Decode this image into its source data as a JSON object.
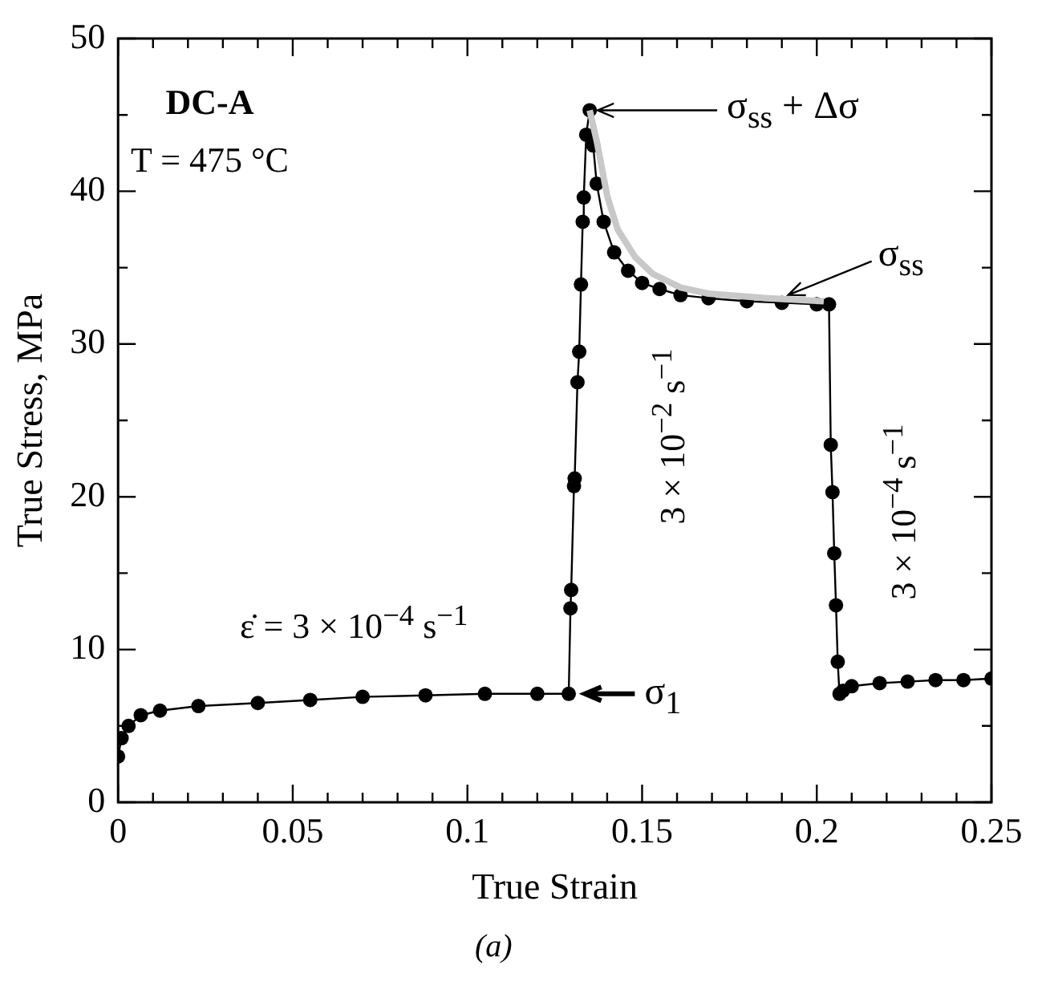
{
  "chart_data": {
    "type": "scatter",
    "xlabel": "True Strain",
    "ylabel": "True Stress, MPa",
    "xlim": [
      0,
      0.25
    ],
    "ylim": [
      0,
      50
    ],
    "xticks": [
      0,
      {
        "value": 0.01,
        "label": null
      },
      {
        "value": 0.02,
        "label": null
      },
      {
        "value": 0.03,
        "label": null
      },
      {
        "value": 0.04,
        "label": null
      },
      0.05,
      {
        "value": 0.06,
        "label": null
      },
      {
        "value": 0.07,
        "label": null
      },
      {
        "value": 0.08,
        "label": null
      },
      {
        "value": 0.09,
        "label": null
      },
      0.1,
      {
        "value": 0.11,
        "label": null
      },
      {
        "value": 0.12,
        "label": null
      },
      {
        "value": 0.13,
        "label": null
      },
      {
        "value": 0.14,
        "label": null
      },
      0.15,
      {
        "value": 0.16,
        "label": null
      },
      {
        "value": 0.17,
        "label": null
      },
      {
        "value": 0.18,
        "label": null
      },
      {
        "value": 0.19,
        "label": null
      },
      0.2,
      {
        "value": 0.21,
        "label": null
      },
      {
        "value": 0.22,
        "label": null
      },
      {
        "value": 0.23,
        "label": null
      },
      {
        "value": 0.24,
        "label": null
      },
      0.25
    ],
    "yticks": [
      0,
      {
        "value": 5,
        "label": null
      },
      10,
      {
        "value": 15,
        "label": null
      },
      20,
      {
        "value": 25,
        "label": null
      },
      30,
      {
        "value": 35,
        "label": null
      },
      40,
      {
        "value": 45,
        "label": null
      },
      50
    ],
    "grid": false,
    "legend": false,
    "series": [
      {
        "type": "line",
        "marker": "circle",
        "color": "#000000",
        "x": [
          0,
          0.001,
          0.003,
          0.0065,
          0.012,
          0.023,
          0.04,
          0.055,
          0.07,
          0.088,
          0.105,
          0.12,
          0.129,
          0.1295,
          0.1297,
          0.1305,
          0.1307,
          0.1315,
          0.132,
          0.1325,
          0.133,
          0.1333,
          0.134,
          0.135,
          0.136,
          0.137,
          0.139,
          0.142,
          0.146,
          0.15,
          0.155,
          0.161,
          0.169,
          0.18,
          0.19,
          0.2,
          0.2035,
          0.204,
          0.2045,
          0.205,
          0.2055,
          0.206,
          0.2065,
          0.2075,
          0.21,
          0.218,
          0.226,
          0.234,
          0.242,
          0.25
        ],
        "values": [
          3.0,
          4.2,
          5.0,
          5.7,
          6.0,
          6.3,
          6.5,
          6.7,
          6.9,
          7.0,
          7.1,
          7.1,
          7.1,
          12.7,
          13.9,
          20.7,
          21.2,
          27.5,
          29.5,
          33.9,
          38.0,
          39.6,
          43.7,
          45.3,
          43.0,
          40.5,
          38.0,
          36.0,
          34.8,
          34.0,
          33.6,
          33.2,
          33.0,
          32.8,
          32.7,
          32.6,
          32.6,
          23.4,
          20.3,
          16.3,
          12.9,
          9.2,
          7.1,
          7.3,
          7.6,
          7.8,
          7.9,
          8.0,
          8.0,
          8.1
        ]
      },
      {
        "type": "line",
        "marker": "none",
        "color": "#c8c8c8",
        "x": [
          0.135,
          0.137,
          0.14,
          0.143,
          0.148,
          0.153,
          0.161,
          0.169,
          0.186,
          0.202
        ],
        "values": [
          45.3,
          43.3,
          39.7,
          37.5,
          35.7,
          34.6,
          33.7,
          33.3,
          33.0,
          32.8
        ]
      }
    ],
    "annotations": [
      "DC-A",
      "T = 475 °C",
      "ε̇ = 3 × 10$^{−4}$ s$^{−1}$",
      "3 × 10$^{−2}$ s$^{−1}$",
      "3 × 10$^{−4}$ s$^{−1}$",
      "(a)",
      "σ$_{ss}$ + Δσ",
      {
        "text": "σ$_{ss}$",
        "x": 0.19,
        "y": 33.0
      },
      {
        "text": "σ$_{1}$",
        "x": 0.13,
        "y": 7.1
      }
    ]
  }
}
